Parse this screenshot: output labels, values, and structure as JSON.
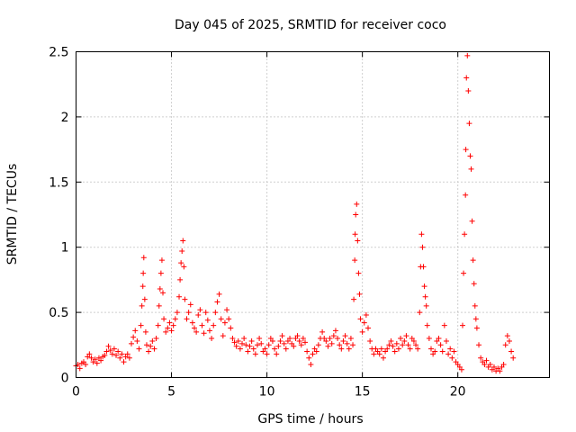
{
  "chart_data": {
    "type": "scatter",
    "title": "Day 045 of 2025, SRMTID for receiver coco",
    "xlabel": "GPS time / hours",
    "ylabel": "SRMTID / TECUs",
    "xlim": [
      0,
      24.8
    ],
    "ylim": [
      0,
      2.5
    ],
    "xticks": [
      0,
      5,
      10,
      15,
      20
    ],
    "yticks": [
      0,
      0.5,
      1,
      1.5,
      2,
      2.5
    ],
    "ytick_labels": [
      "0",
      "0.5",
      "1",
      "1.5",
      "2",
      "2.5"
    ],
    "grid": true,
    "marker": "+",
    "series": [
      {
        "name": "coco",
        "color": "#ff0000",
        "points": [
          [
            0.0,
            0.09
          ],
          [
            0.1,
            0.1
          ],
          [
            0.2,
            0.07
          ],
          [
            0.3,
            0.11
          ],
          [
            0.4,
            0.12
          ],
          [
            0.5,
            0.1
          ],
          [
            0.6,
            0.16
          ],
          [
            0.7,
            0.18
          ],
          [
            0.8,
            0.15
          ],
          [
            0.9,
            0.12
          ],
          [
            1.0,
            0.14
          ],
          [
            1.1,
            0.11
          ],
          [
            1.2,
            0.15
          ],
          [
            1.3,
            0.13
          ],
          [
            1.4,
            0.16
          ],
          [
            1.5,
            0.17
          ],
          [
            1.6,
            0.2
          ],
          [
            1.7,
            0.24
          ],
          [
            1.8,
            0.21
          ],
          [
            1.9,
            0.18
          ],
          [
            2.0,
            0.22
          ],
          [
            2.1,
            0.17
          ],
          [
            2.2,
            0.2
          ],
          [
            2.3,
            0.15
          ],
          [
            2.4,
            0.18
          ],
          [
            2.5,
            0.12
          ],
          [
            2.6,
            0.16
          ],
          [
            2.7,
            0.18
          ],
          [
            2.8,
            0.15
          ],
          [
            2.9,
            0.26
          ],
          [
            3.0,
            0.31
          ],
          [
            3.1,
            0.36
          ],
          [
            3.2,
            0.28
          ],
          [
            3.3,
            0.22
          ],
          [
            3.4,
            0.4
          ],
          [
            3.45,
            0.55
          ],
          [
            3.5,
            0.7
          ],
          [
            3.52,
            0.8
          ],
          [
            3.55,
            0.92
          ],
          [
            3.6,
            0.6
          ],
          [
            3.65,
            0.35
          ],
          [
            3.7,
            0.25
          ],
          [
            3.8,
            0.2
          ],
          [
            3.9,
            0.24
          ],
          [
            4.0,
            0.28
          ],
          [
            4.1,
            0.22
          ],
          [
            4.2,
            0.3
          ],
          [
            4.3,
            0.4
          ],
          [
            4.35,
            0.55
          ],
          [
            4.4,
            0.68
          ],
          [
            4.45,
            0.8
          ],
          [
            4.5,
            0.9
          ],
          [
            4.55,
            0.65
          ],
          [
            4.6,
            0.45
          ],
          [
            4.7,
            0.35
          ],
          [
            4.8,
            0.38
          ],
          [
            4.9,
            0.42
          ],
          [
            5.0,
            0.36
          ],
          [
            5.1,
            0.4
          ],
          [
            5.2,
            0.45
          ],
          [
            5.3,
            0.5
          ],
          [
            5.4,
            0.62
          ],
          [
            5.45,
            0.75
          ],
          [
            5.5,
            0.88
          ],
          [
            5.55,
            0.97
          ],
          [
            5.6,
            1.05
          ],
          [
            5.65,
            0.85
          ],
          [
            5.7,
            0.6
          ],
          [
            5.8,
            0.45
          ],
          [
            5.9,
            0.5
          ],
          [
            6.0,
            0.56
          ],
          [
            6.1,
            0.42
          ],
          [
            6.2,
            0.38
          ],
          [
            6.3,
            0.35
          ],
          [
            6.4,
            0.48
          ],
          [
            6.5,
            0.52
          ],
          [
            6.6,
            0.4
          ],
          [
            6.7,
            0.34
          ],
          [
            6.8,
            0.5
          ],
          [
            6.9,
            0.44
          ],
          [
            7.0,
            0.36
          ],
          [
            7.1,
            0.3
          ],
          [
            7.2,
            0.4
          ],
          [
            7.3,
            0.5
          ],
          [
            7.4,
            0.58
          ],
          [
            7.5,
            0.64
          ],
          [
            7.6,
            0.45
          ],
          [
            7.7,
            0.32
          ],
          [
            7.8,
            0.42
          ],
          [
            7.9,
            0.52
          ],
          [
            8.0,
            0.45
          ],
          [
            8.1,
            0.38
          ],
          [
            8.2,
            0.3
          ],
          [
            8.3,
            0.27
          ],
          [
            8.4,
            0.24
          ],
          [
            8.5,
            0.28
          ],
          [
            8.6,
            0.22
          ],
          [
            8.7,
            0.26
          ],
          [
            8.8,
            0.3
          ],
          [
            8.9,
            0.25
          ],
          [
            9.0,
            0.2
          ],
          [
            9.1,
            0.24
          ],
          [
            9.2,
            0.28
          ],
          [
            9.3,
            0.22
          ],
          [
            9.4,
            0.18
          ],
          [
            9.5,
            0.25
          ],
          [
            9.6,
            0.3
          ],
          [
            9.7,
            0.26
          ],
          [
            9.8,
            0.2
          ],
          [
            9.9,
            0.22
          ],
          [
            10.0,
            0.18
          ],
          [
            10.1,
            0.25
          ],
          [
            10.2,
            0.3
          ],
          [
            10.3,
            0.28
          ],
          [
            10.4,
            0.22
          ],
          [
            10.5,
            0.18
          ],
          [
            10.6,
            0.24
          ],
          [
            10.7,
            0.28
          ],
          [
            10.8,
            0.32
          ],
          [
            10.9,
            0.26
          ],
          [
            11.0,
            0.22
          ],
          [
            11.1,
            0.28
          ],
          [
            11.2,
            0.3
          ],
          [
            11.3,
            0.26
          ],
          [
            11.4,
            0.24
          ],
          [
            11.5,
            0.3
          ],
          [
            11.6,
            0.32
          ],
          [
            11.7,
            0.28
          ],
          [
            11.8,
            0.25
          ],
          [
            11.9,
            0.3
          ],
          [
            12.0,
            0.27
          ],
          [
            12.1,
            0.2
          ],
          [
            12.2,
            0.15
          ],
          [
            12.3,
            0.1
          ],
          [
            12.4,
            0.18
          ],
          [
            12.5,
            0.22
          ],
          [
            12.6,
            0.2
          ],
          [
            12.7,
            0.25
          ],
          [
            12.8,
            0.3
          ],
          [
            12.9,
            0.35
          ],
          [
            13.0,
            0.3
          ],
          [
            13.1,
            0.28
          ],
          [
            13.2,
            0.24
          ],
          [
            13.3,
            0.3
          ],
          [
            13.4,
            0.26
          ],
          [
            13.5,
            0.32
          ],
          [
            13.6,
            0.36
          ],
          [
            13.7,
            0.3
          ],
          [
            13.8,
            0.25
          ],
          [
            13.9,
            0.22
          ],
          [
            14.0,
            0.28
          ],
          [
            14.1,
            0.32
          ],
          [
            14.2,
            0.26
          ],
          [
            14.3,
            0.22
          ],
          [
            14.4,
            0.3
          ],
          [
            14.5,
            0.25
          ],
          [
            14.55,
            0.6
          ],
          [
            14.6,
            0.9
          ],
          [
            14.62,
            1.1
          ],
          [
            14.65,
            1.25
          ],
          [
            14.7,
            1.33
          ],
          [
            14.75,
            1.05
          ],
          [
            14.8,
            0.8
          ],
          [
            14.85,
            0.64
          ],
          [
            14.9,
            0.45
          ],
          [
            15.0,
            0.35
          ],
          [
            15.1,
            0.42
          ],
          [
            15.2,
            0.48
          ],
          [
            15.3,
            0.38
          ],
          [
            15.4,
            0.28
          ],
          [
            15.5,
            0.22
          ],
          [
            15.6,
            0.18
          ],
          [
            15.7,
            0.22
          ],
          [
            15.8,
            0.2
          ],
          [
            15.9,
            0.18
          ],
          [
            16.0,
            0.22
          ],
          [
            16.1,
            0.15
          ],
          [
            16.2,
            0.2
          ],
          [
            16.3,
            0.22
          ],
          [
            16.4,
            0.25
          ],
          [
            16.5,
            0.28
          ],
          [
            16.6,
            0.24
          ],
          [
            16.7,
            0.2
          ],
          [
            16.8,
            0.26
          ],
          [
            16.9,
            0.22
          ],
          [
            17.0,
            0.3
          ],
          [
            17.1,
            0.25
          ],
          [
            17.2,
            0.28
          ],
          [
            17.3,
            0.32
          ],
          [
            17.4,
            0.25
          ],
          [
            17.5,
            0.22
          ],
          [
            17.6,
            0.3
          ],
          [
            17.7,
            0.28
          ],
          [
            17.8,
            0.25
          ],
          [
            17.9,
            0.22
          ],
          [
            18.0,
            0.5
          ],
          [
            18.05,
            0.85
          ],
          [
            18.1,
            1.1
          ],
          [
            18.15,
            1.0
          ],
          [
            18.2,
            0.85
          ],
          [
            18.25,
            0.7
          ],
          [
            18.3,
            0.62
          ],
          [
            18.35,
            0.55
          ],
          [
            18.4,
            0.4
          ],
          [
            18.5,
            0.3
          ],
          [
            18.6,
            0.22
          ],
          [
            18.7,
            0.18
          ],
          [
            18.8,
            0.2
          ],
          [
            18.9,
            0.28
          ],
          [
            19.0,
            0.3
          ],
          [
            19.1,
            0.25
          ],
          [
            19.2,
            0.2
          ],
          [
            19.3,
            0.4
          ],
          [
            19.4,
            0.28
          ],
          [
            19.5,
            0.18
          ],
          [
            19.6,
            0.22
          ],
          [
            19.7,
            0.15
          ],
          [
            19.8,
            0.2
          ],
          [
            19.9,
            0.12
          ],
          [
            20.0,
            0.1
          ],
          [
            20.1,
            0.08
          ],
          [
            20.2,
            0.06
          ],
          [
            20.25,
            0.4
          ],
          [
            20.3,
            0.8
          ],
          [
            20.35,
            1.1
          ],
          [
            20.4,
            1.4
          ],
          [
            20.42,
            1.75
          ],
          [
            20.45,
            2.3
          ],
          [
            20.5,
            2.47
          ],
          [
            20.55,
            2.2
          ],
          [
            20.6,
            1.95
          ],
          [
            20.65,
            1.7
          ],
          [
            20.7,
            1.6
          ],
          [
            20.75,
            1.2
          ],
          [
            20.8,
            0.9
          ],
          [
            20.85,
            0.72
          ],
          [
            20.9,
            0.55
          ],
          [
            20.95,
            0.45
          ],
          [
            21.0,
            0.38
          ],
          [
            21.1,
            0.25
          ],
          [
            21.2,
            0.15
          ],
          [
            21.3,
            0.12
          ],
          [
            21.4,
            0.1
          ],
          [
            21.5,
            0.13
          ],
          [
            21.6,
            0.08
          ],
          [
            21.7,
            0.1
          ],
          [
            21.8,
            0.06
          ],
          [
            21.9,
            0.08
          ],
          [
            22.0,
            0.05
          ],
          [
            22.1,
            0.07
          ],
          [
            22.2,
            0.05
          ],
          [
            22.3,
            0.08
          ],
          [
            22.4,
            0.1
          ],
          [
            22.5,
            0.25
          ],
          [
            22.6,
            0.32
          ],
          [
            22.7,
            0.28
          ],
          [
            22.8,
            0.2
          ],
          [
            22.9,
            0.15
          ]
        ]
      }
    ]
  }
}
